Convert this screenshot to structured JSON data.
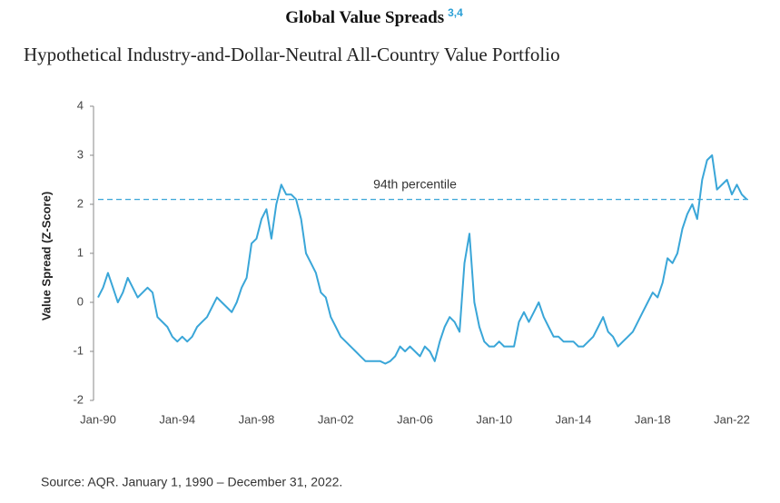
{
  "chart_data": {
    "type": "line",
    "title": "Global Value Spreads",
    "title_note": "3,4",
    "subtitle": "Hypothetical Industry-and-Dollar-Neutral All-Country Value Portfolio",
    "y_label": "Value Spread (Z-Score)",
    "source": "Source: AQR. January 1, 1990 – December 31, 2022.",
    "reference_line": {
      "y": 2.1,
      "label": "94th percentile",
      "color": "#3aa6d8"
    },
    "x": [
      "Jan-90",
      "Apr-90",
      "Jul-90",
      "Oct-90",
      "Jan-91",
      "Apr-91",
      "Jul-91",
      "Oct-91",
      "Jan-92",
      "Apr-92",
      "Jul-92",
      "Oct-92",
      "Jan-93",
      "Apr-93",
      "Jul-93",
      "Oct-93",
      "Jan-94",
      "Apr-94",
      "Jul-94",
      "Oct-94",
      "Jan-95",
      "Apr-95",
      "Jul-95",
      "Oct-95",
      "Jan-96",
      "Apr-96",
      "Jul-96",
      "Oct-96",
      "Jan-97",
      "Apr-97",
      "Jul-97",
      "Oct-97",
      "Jan-98",
      "Apr-98",
      "Jul-98",
      "Oct-98",
      "Jan-99",
      "Apr-99",
      "Jul-99",
      "Oct-99",
      "Jan-00",
      "Apr-00",
      "Jul-00",
      "Oct-00",
      "Jan-01",
      "Apr-01",
      "Jul-01",
      "Oct-01",
      "Jan-02",
      "Apr-02",
      "Jul-02",
      "Oct-02",
      "Jan-03",
      "Apr-03",
      "Jul-03",
      "Oct-03",
      "Jan-04",
      "Apr-04",
      "Jul-04",
      "Oct-04",
      "Jan-05",
      "Apr-05",
      "Jul-05",
      "Oct-05",
      "Jan-06",
      "Apr-06",
      "Jul-06",
      "Oct-06",
      "Jan-07",
      "Apr-07",
      "Jul-07",
      "Oct-07",
      "Jan-08",
      "Apr-08",
      "Jul-08",
      "Oct-08",
      "Jan-09",
      "Apr-09",
      "Jul-09",
      "Oct-09",
      "Jan-10",
      "Apr-10",
      "Jul-10",
      "Oct-10",
      "Jan-11",
      "Apr-11",
      "Jul-11",
      "Oct-11",
      "Jan-12",
      "Apr-12",
      "Jul-12",
      "Oct-12",
      "Jan-13",
      "Apr-13",
      "Jul-13",
      "Oct-13",
      "Jan-14",
      "Apr-14",
      "Jul-14",
      "Oct-14",
      "Jan-15",
      "Apr-15",
      "Jul-15",
      "Oct-15",
      "Jan-16",
      "Apr-16",
      "Jul-16",
      "Oct-16",
      "Jan-17",
      "Apr-17",
      "Jul-17",
      "Oct-17",
      "Jan-18",
      "Apr-18",
      "Jul-18",
      "Oct-18",
      "Jan-19",
      "Apr-19",
      "Jul-19",
      "Oct-19",
      "Jan-20",
      "Apr-20",
      "Jul-20",
      "Oct-20",
      "Jan-21",
      "Apr-21",
      "Jul-21",
      "Oct-21",
      "Jan-22",
      "Apr-22",
      "Jul-22",
      "Oct-22"
    ],
    "series": [
      {
        "name": "Value Spread",
        "color": "#3aa6d8",
        "values": [
          0.1,
          0.3,
          0.6,
          0.3,
          0.0,
          0.2,
          0.5,
          0.3,
          0.1,
          0.2,
          0.3,
          0.2,
          -0.3,
          -0.4,
          -0.5,
          -0.7,
          -0.8,
          -0.7,
          -0.8,
          -0.7,
          -0.5,
          -0.4,
          -0.3,
          -0.1,
          0.1,
          0.0,
          -0.1,
          -0.2,
          0.0,
          0.3,
          0.5,
          1.2,
          1.3,
          1.7,
          1.9,
          1.3,
          2.0,
          2.4,
          2.2,
          2.2,
          2.1,
          1.7,
          1.0,
          0.8,
          0.6,
          0.2,
          0.1,
          -0.3,
          -0.5,
          -0.7,
          -0.8,
          -0.9,
          -1.0,
          -1.1,
          -1.2,
          -1.2,
          -1.2,
          -1.2,
          -1.25,
          -1.2,
          -1.1,
          -0.9,
          -1.0,
          -0.9,
          -1.0,
          -1.1,
          -0.9,
          -1.0,
          -1.2,
          -0.8,
          -0.5,
          -0.3,
          -0.4,
          -0.6,
          0.8,
          1.4,
          0.0,
          -0.5,
          -0.8,
          -0.9,
          -0.9,
          -0.8,
          -0.9,
          -0.9,
          -0.9,
          -0.4,
          -0.2,
          -0.4,
          -0.2,
          0.0,
          -0.3,
          -0.5,
          -0.7,
          -0.7,
          -0.8,
          -0.8,
          -0.8,
          -0.9,
          -0.9,
          -0.8,
          -0.7,
          -0.5,
          -0.3,
          -0.6,
          -0.7,
          -0.9,
          -0.8,
          -0.7,
          -0.6,
          -0.4,
          -0.2,
          0.0,
          0.2,
          0.1,
          0.4,
          0.9,
          0.8,
          1.0,
          1.5,
          1.8,
          2.0,
          1.7,
          2.5,
          2.9,
          3.0,
          2.3,
          2.4,
          2.5,
          2.2,
          2.4,
          2.2,
          2.1
        ]
      }
    ],
    "xlim": [
      "Jan-90",
      "Dec-22"
    ],
    "xticks": [
      "Jan-90",
      "Jan-94",
      "Jan-98",
      "Jan-02",
      "Jan-06",
      "Jan-10",
      "Jan-14",
      "Jan-18",
      "Jan-22"
    ],
    "ylim": [
      -2,
      4
    ],
    "yticks": [
      -2,
      -1,
      0,
      1,
      2,
      3,
      4
    ]
  }
}
